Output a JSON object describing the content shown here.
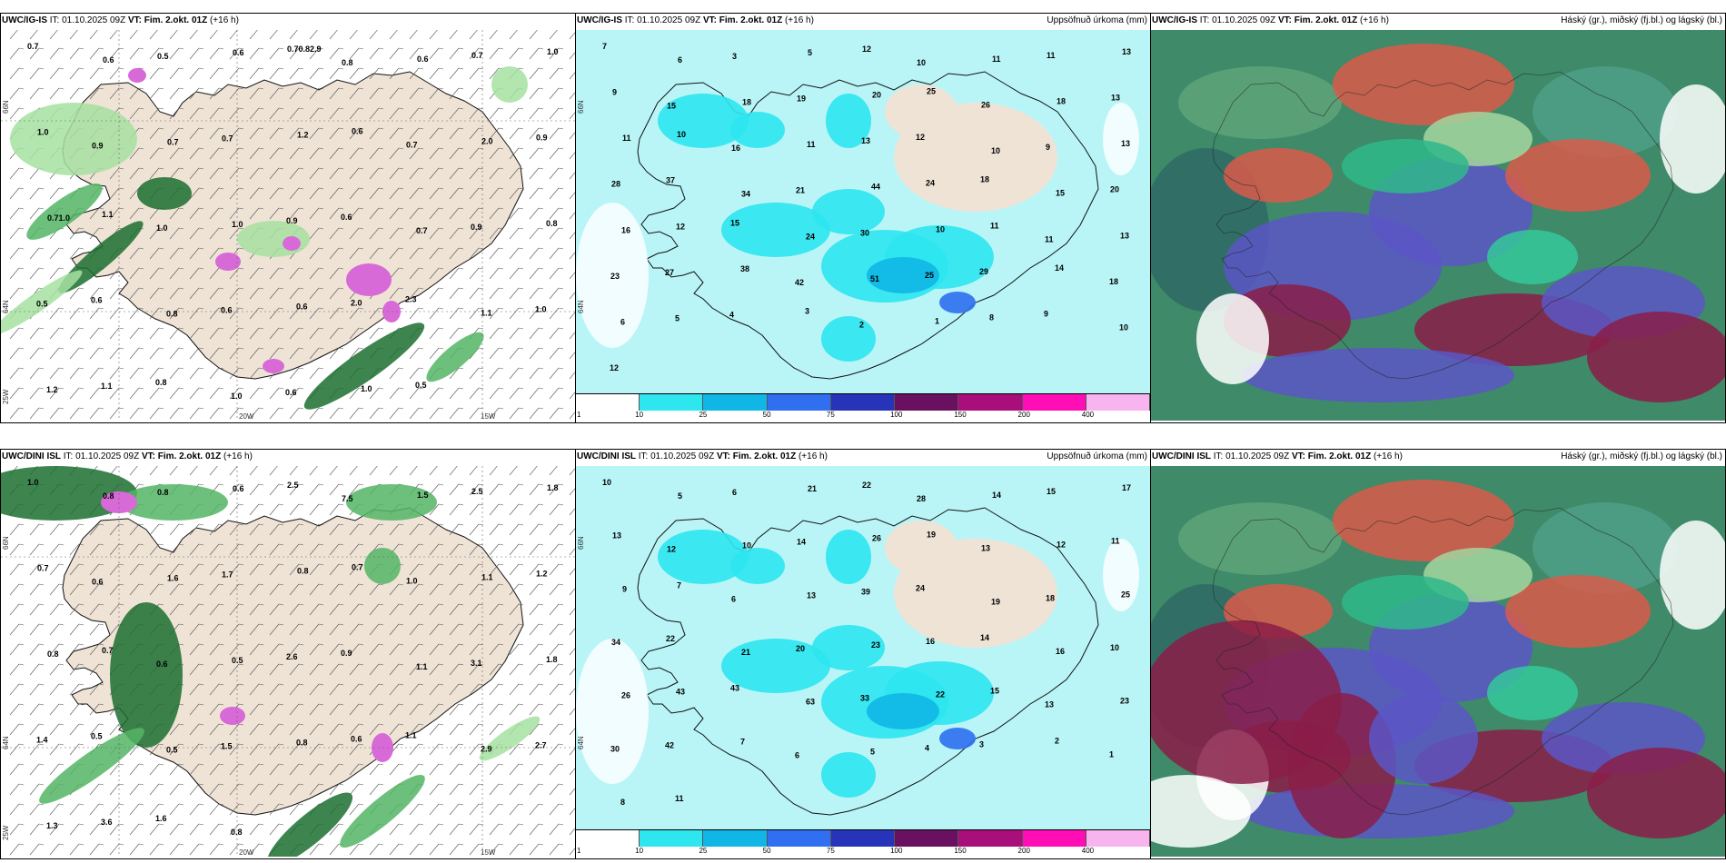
{
  "panels": [
    {
      "id": "top-left",
      "model": "UWC/IG-IS",
      "it": " IT: 01.10.2025 09Z ",
      "vt": "VT: Fim. 2.okt. 01Z",
      "lead": " (+16 h)",
      "right_title": "",
      "axis": {
        "lon": [
          "20W",
          "15W"
        ],
        "lat": [
          "66N",
          "64N",
          "25W"
        ]
      },
      "numbers": [
        "0.7",
        "0.6",
        "0.5",
        "0.6",
        "0.70.82.9",
        "0.8",
        "0.6",
        "0.7",
        "1.0",
        "1.0",
        "0.9",
        "0.7",
        "0.7",
        "1.2",
        "0.6",
        "0.7",
        "2.0",
        "0.9",
        "0.71.0",
        "1.1",
        "1.0",
        "1.0",
        "0.9",
        "0.6",
        "0.7",
        "0.9",
        "0.8",
        "0.5",
        "0.6",
        "0.8",
        "0.6",
        "0.6",
        "2.0",
        "2.3",
        "1.1",
        "1.0",
        "1.2",
        "1.1",
        "0.8",
        "1.0",
        "0.6",
        "1.0",
        "0.5"
      ]
    },
    {
      "id": "top-middle",
      "model": "UWC/IG-IS",
      "it": " IT: 01.10.2025 09Z ",
      "vt": "VT: Fim. 2.okt. 01Z",
      "lead": " (+16 h)",
      "right_title": "Uppsöfnuð úrkoma (mm)",
      "axis": {
        "lat": [
          "66N",
          "64N"
        ]
      },
      "colorbar_ticks": [
        "1",
        "10",
        "25",
        "50",
        "75",
        "100",
        "150",
        "200",
        "400"
      ],
      "numbers": [
        "7",
        "6",
        "3",
        "5",
        "12",
        "10",
        "11",
        "11",
        "13",
        "9",
        "15",
        "18",
        "19",
        "20",
        "25",
        "26",
        "18",
        "13",
        "11",
        "10",
        "16",
        "11",
        "13",
        "12",
        "10",
        "9",
        "13",
        "28",
        "37",
        "34",
        "21",
        "44",
        "24",
        "18",
        "15",
        "20",
        "16",
        "12",
        "15",
        "24",
        "30",
        "10",
        "11",
        "11",
        "13",
        "23",
        "27",
        "38",
        "42",
        "51",
        "25",
        "29",
        "14",
        "18",
        "6",
        "5",
        "4",
        "3",
        "2",
        "1",
        "8",
        "9",
        "10",
        "12"
      ]
    },
    {
      "id": "top-right",
      "model": "UWC/IG-IS",
      "it": " IT: 01.10.2025 09Z ",
      "vt": "VT: Fim. 2.okt. 01Z",
      "lead": " (+16 h)",
      "right_title": "Háský (gr.), miðský (fj.bl.) og lágský (bl.)"
    },
    {
      "id": "bottom-left",
      "model": "UWC/DINI ISL",
      "it": " IT: 01.10.2025 09Z ",
      "vt": "VT: Fim. 2.okt. 01Z",
      "lead": " (+16 h)",
      "right_title": "",
      "axis": {
        "lon": [
          "20W",
          "15W"
        ],
        "lat": [
          "66N",
          "64N",
          "25W"
        ]
      },
      "numbers": [
        "1.0",
        "0.8",
        "0.8",
        "0.6",
        "2.5",
        "7.5",
        "1.5",
        "2.5",
        "1.8",
        "0.7",
        "0.6",
        "1.6",
        "1.7",
        "0.8",
        "0.7",
        "1.0",
        "1.1",
        "1.2",
        "0.8",
        "0.7",
        "0.6",
        "0.5",
        "2.6",
        "0.9",
        "1.1",
        "3.1",
        "1.8",
        "1.4",
        "0.5",
        "0.5",
        "1.5",
        "0.8",
        "0.6",
        "1.1",
        "2.9",
        "2.7",
        "1.3",
        "3.6",
        "1.6",
        "0.8"
      ]
    },
    {
      "id": "bottom-middle",
      "model": "UWC/DINI ISL",
      "it": " IT: 01.10.2025 09Z ",
      "vt": "VT: Fim. 2.okt. 01Z",
      "lead": " (+16 h)",
      "right_title": "Uppsöfnuð úrkoma (mm)",
      "axis": {
        "lat": [
          "66N",
          "64N"
        ]
      },
      "colorbar_ticks": [
        "1",
        "10",
        "25",
        "50",
        "75",
        "100",
        "150",
        "200",
        "400"
      ],
      "numbers": [
        "10",
        "5",
        "6",
        "21",
        "22",
        "28",
        "14",
        "15",
        "17",
        "13",
        "12",
        "10",
        "14",
        "26",
        "19",
        "13",
        "12",
        "11",
        "9",
        "7",
        "6",
        "13",
        "39",
        "24",
        "19",
        "18",
        "25",
        "34",
        "22",
        "21",
        "20",
        "23",
        "16",
        "14",
        "16",
        "10",
        "26",
        "43",
        "43",
        "63",
        "33",
        "22",
        "15",
        "13",
        "23",
        "30",
        "42",
        "7",
        "6",
        "5",
        "4",
        "3",
        "2",
        "1",
        "8",
        "11"
      ]
    },
    {
      "id": "bottom-right",
      "model": "UWC/DINI ISL",
      "it": " IT: 01.10.2025 09Z ",
      "vt": "VT: Fim. 2.okt. 01Z",
      "lead": " (+16 h)",
      "right_title": "Háský (gr.), miðský (fj.bl.) og lágský (bl.)"
    }
  ],
  "colors": {
    "land": "#efe3d6",
    "precip_light": "#b9f5f7",
    "precip_cyan": "#2de6ee",
    "precip_blue": "#10b7e6",
    "green_light": "#a6e0a0",
    "green_mid": "#54b565",
    "green_dark": "#1c6e30",
    "magenta": "#d86ad8",
    "cloud_high": "#3f8a68",
    "cloud_mid": "#5a56c7",
    "cloud_low": "#8a1d48",
    "cloud_red": "#d95a4a",
    "colorbar": [
      "#ffffff",
      "#2de6ee",
      "#10b7e6",
      "#2f6ff0",
      "#2733b8",
      "#6a1060",
      "#a80f7a",
      "#ff0db5",
      "#f7b4ee"
    ]
  }
}
